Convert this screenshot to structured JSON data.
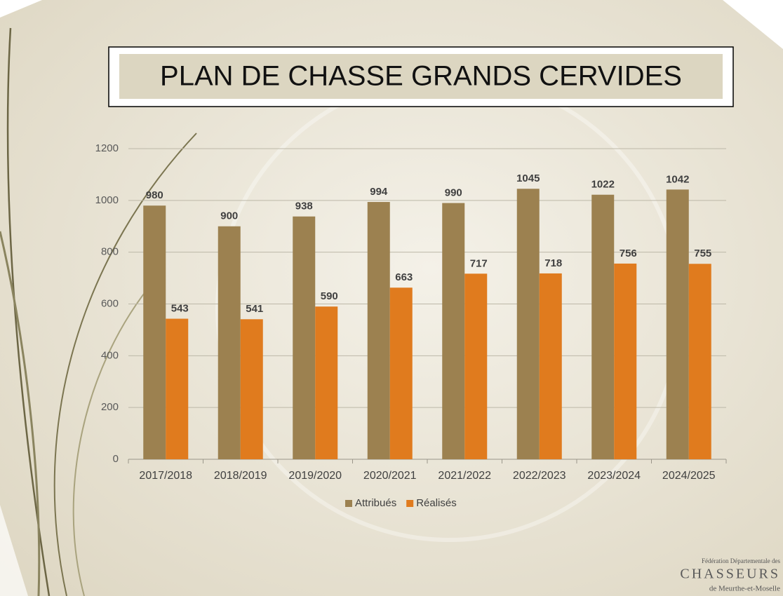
{
  "chart_data": {
    "type": "bar",
    "title": "PLAN DE CHASSE GRANDS CERVIDES",
    "categories": [
      "2017/2018",
      "2018/2019",
      "2019/2020",
      "2020/2021",
      "2021/2022",
      "2022/2023",
      "2023/2024",
      "2024/2025"
    ],
    "series": [
      {
        "name": "Attribués",
        "color": "#9c8150",
        "values": [
          980,
          900,
          938,
          994,
          990,
          1045,
          1022,
          1042
        ]
      },
      {
        "name": "Réalisés",
        "color": "#e07b1e",
        "values": [
          543,
          541,
          590,
          663,
          717,
          718,
          756,
          755
        ]
      }
    ],
    "ylim": [
      0,
      1200
    ],
    "yticks": [
      0,
      200,
      400,
      600,
      800,
      1000,
      1200
    ],
    "grid": true,
    "legend": "bottom"
  },
  "footer": {
    "line1": "Fédération Départementale des",
    "line2": "CHASSEURS",
    "line3": "de Meurthe-et-Moselle"
  }
}
